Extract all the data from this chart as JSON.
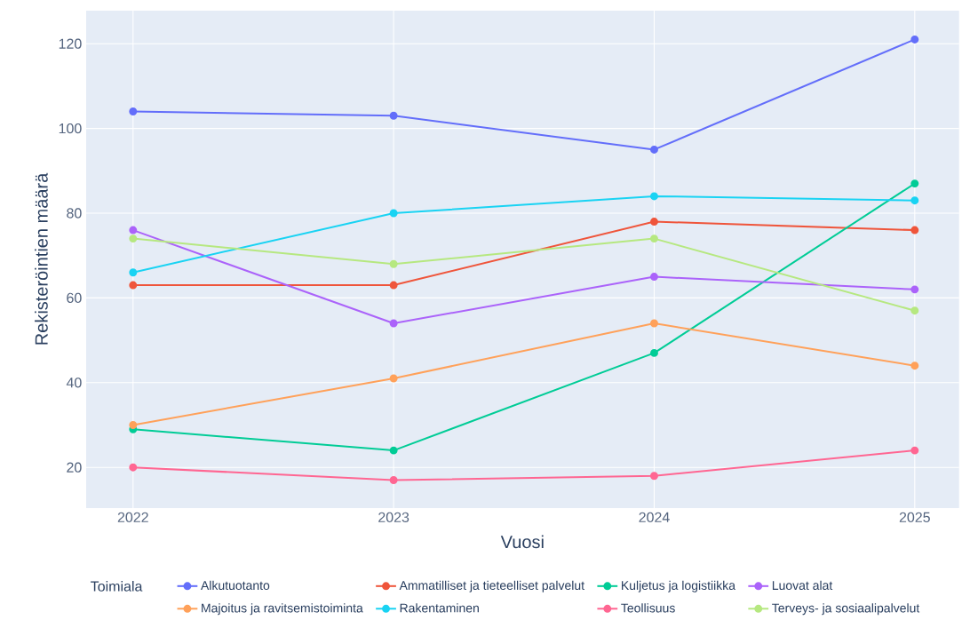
{
  "chart_data": {
    "type": "line",
    "xlabel": "Vuosi",
    "ylabel": "Rekisteröintien määrä",
    "legend_title": "Toimiala",
    "x": [
      2022,
      2023,
      2024,
      2025
    ],
    "xlim": [
      2021.82,
      2025.17
    ],
    "xticks": [
      2022,
      2023,
      2024,
      2025
    ],
    "ylim": [
      10.4,
      127.8
    ],
    "yticks": [
      20,
      40,
      60,
      80,
      100,
      120
    ],
    "grid": true,
    "legend": "bottom",
    "marker": "circle",
    "line_style": "solid",
    "series": [
      {
        "name": "Alkutuotanto",
        "color": "#636efa",
        "values": [
          104,
          103,
          95,
          121
        ]
      },
      {
        "name": "Ammatilliset ja tieteelliset palvelut",
        "color": "#ef553b",
        "values": [
          63,
          63,
          78,
          76
        ]
      },
      {
        "name": "Kuljetus ja logistiikka",
        "color": "#00cc96",
        "values": [
          29,
          24,
          47,
          87
        ]
      },
      {
        "name": "Luovat alat",
        "color": "#ab63fa",
        "values": [
          76,
          54,
          65,
          62
        ]
      },
      {
        "name": "Majoitus ja ravitsemistoiminta",
        "color": "#ffa15a",
        "values": [
          30,
          41,
          54,
          44
        ]
      },
      {
        "name": "Rakentaminen",
        "color": "#19d3f3",
        "values": [
          66,
          80,
          84,
          83
        ]
      },
      {
        "name": "Teollisuus",
        "color": "#ff6692",
        "values": [
          20,
          17,
          18,
          24
        ]
      },
      {
        "name": "Terveys- ja sosiaalipalvelut",
        "color": "#b6e880",
        "values": [
          74,
          68,
          74,
          57
        ]
      }
    ]
  }
}
